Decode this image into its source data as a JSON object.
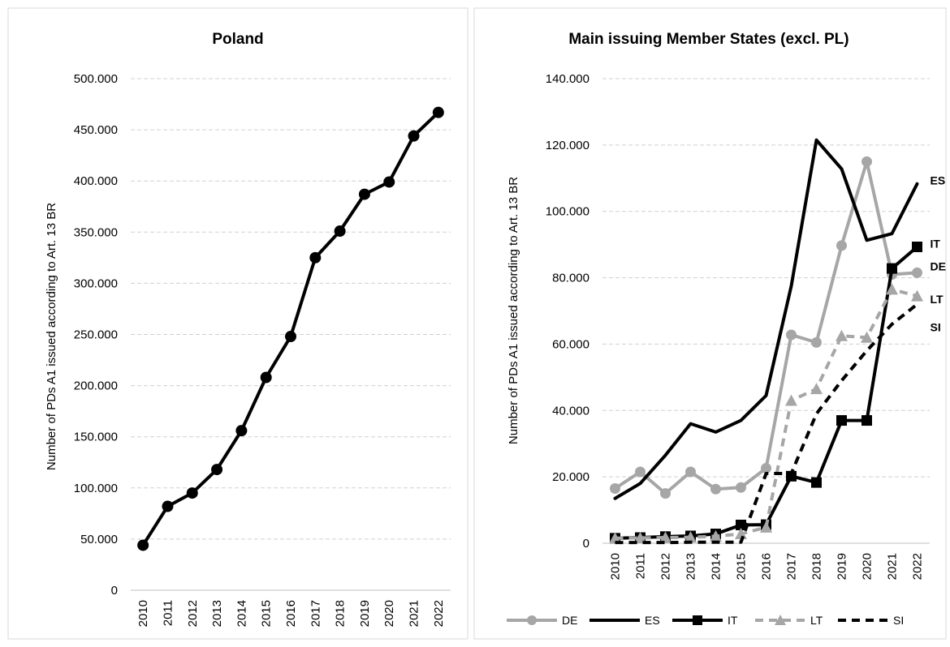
{
  "chart_data": [
    {
      "type": "line",
      "title": "Poland",
      "xlabel": "",
      "ylabel": "Number of PDs A1 issued according to Art. 13 BR",
      "categories": [
        "2010",
        "2011",
        "2012",
        "2013",
        "2014",
        "2015",
        "2016",
        "2017",
        "2018",
        "2019",
        "2020",
        "2021",
        "2022"
      ],
      "ylim": [
        0,
        500000
      ],
      "yticks": [
        0,
        50000,
        100000,
        150000,
        200000,
        250000,
        300000,
        350000,
        400000,
        450000,
        500000
      ],
      "ytick_labels": [
        "0",
        "50.000",
        "100.000",
        "150.000",
        "200.000",
        "250.000",
        "300.000",
        "350.000",
        "400.000",
        "450.000",
        "500.000"
      ],
      "grid": true,
      "legend": "none",
      "series": [
        {
          "values": [
            44000,
            82000,
            95000,
            118000,
            156000,
            208000,
            248000,
            325000,
            351000,
            387000,
            399000,
            444000,
            467000
          ],
          "color": "#000000",
          "dash": "solid",
          "marker": "circle"
        }
      ]
    },
    {
      "type": "line",
      "title": "Main issuing Member States (excl. PL)",
      "xlabel": "",
      "ylabel": "Number of PDs A1 issued according to Art. 13 BR",
      "categories": [
        "2010",
        "2011",
        "2012",
        "2013",
        "2014",
        "2015",
        "2016",
        "2017",
        "2018",
        "2019",
        "2020",
        "2021",
        "2022"
      ],
      "ylim": [
        0,
        140000
      ],
      "yticks": [
        0,
        20000,
        40000,
        60000,
        80000,
        100000,
        120000,
        140000
      ],
      "ytick_labels": [
        "0",
        "20.000",
        "40.000",
        "60.000",
        "80.000",
        "100.000",
        "120.000",
        "140.000"
      ],
      "grid": true,
      "legend": "bottom",
      "series": [
        {
          "name": "DE",
          "end_label": "DE",
          "values": [
            16500,
            21500,
            15000,
            21500,
            16300,
            16800,
            22600,
            62800,
            60500,
            89700,
            115000,
            81000,
            81500
          ],
          "color": "#a6a6a6",
          "dash": "solid",
          "marker": "circle"
        },
        {
          "name": "ES",
          "end_label": "ES",
          "values": [
            13500,
            18000,
            26500,
            36000,
            33500,
            37000,
            44500,
            77500,
            121500,
            112800,
            91300,
            93300,
            108300
          ],
          "color": "#000000",
          "dash": "solid",
          "marker": "none"
        },
        {
          "name": "IT",
          "end_label": "IT",
          "values": [
            1500,
            1700,
            2000,
            2200,
            2800,
            5500,
            5600,
            20200,
            18300,
            37000,
            37000,
            82800,
            89300
          ],
          "color": "#000000",
          "dash": "solid",
          "marker": "square"
        },
        {
          "name": "LT",
          "end_label": "LT",
          "values": [
            1500,
            1600,
            1700,
            1800,
            2100,
            2800,
            4800,
            43000,
            46500,
            62500,
            62000,
            76500,
            74500
          ],
          "color": "#a6a6a6",
          "dash": "dash",
          "marker": "triangle"
        },
        {
          "name": "SI",
          "end_label": "SI",
          "values": [
            200,
            200,
            200,
            300,
            300,
            300,
            21000,
            21000,
            39000,
            49000,
            58000,
            66000,
            72000
          ],
          "color": "#000000",
          "dash": "dash",
          "marker": "none"
        }
      ]
    }
  ]
}
